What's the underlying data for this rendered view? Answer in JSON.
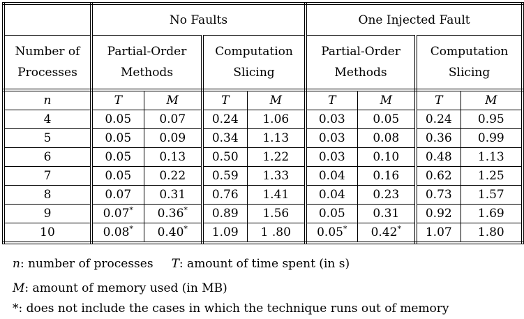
{
  "header": {
    "no_faults": "No Faults",
    "one_fault": "One Injected Fault",
    "num_processes": "Number of Processes",
    "partial_order_1": "Partial-Order Methods",
    "slicing_1": "Computation Slicing",
    "partial_order_2": "Partial-Order Methods",
    "slicing_2": "Computation Slicing"
  },
  "symbols": {
    "n": "n",
    "T1": "T",
    "M1": "M",
    "T2": "T",
    "M2": "M",
    "T3": "T",
    "M3": "M",
    "T4": "T",
    "M4": "M"
  },
  "rows": [
    {
      "n": "4",
      "c": [
        "0.05",
        "0.07",
        "0.24",
        "1.06",
        "0.03",
        "0.05",
        "0.24",
        "0.95"
      ]
    },
    {
      "n": "5",
      "c": [
        "0.05",
        "0.09",
        "0.34",
        "1.13",
        "0.03",
        "0.08",
        "0.36",
        "0.99"
      ]
    },
    {
      "n": "6",
      "c": [
        "0.05",
        "0.13",
        "0.50",
        "1.22",
        "0.03",
        "0.10",
        "0.48",
        "1.13"
      ]
    },
    {
      "n": "7",
      "c": [
        "0.05",
        "0.22",
        "0.59",
        "1.33",
        "0.04",
        "0.16",
        "0.62",
        "1.25"
      ]
    },
    {
      "n": "8",
      "c": [
        "0.07",
        "0.31",
        "0.76",
        "1.41",
        "0.04",
        "0.23",
        "0.73",
        "1.57"
      ]
    },
    {
      "n": "9",
      "c": [
        "0.07*",
        "0.36*",
        "0.89",
        "1.56",
        "0.05",
        "0.31",
        "0.92",
        "1.69"
      ]
    },
    {
      "n": "10",
      "c": [
        "0.08*",
        "0.40*",
        "1.09",
        "1 .80",
        "0.05*",
        "0.42*",
        "1.07",
        "1.80"
      ]
    }
  ],
  "notes": {
    "n_sym": "n",
    "n_desc": ": number of processes",
    "t_sym": "T",
    "t_desc": ": amount of time spent (in s)",
    "m_sym": "M",
    "m_desc": ": amount of memory used (in MB)",
    "star_desc": "*: does not include the cases in which the technique runs out of memory"
  }
}
